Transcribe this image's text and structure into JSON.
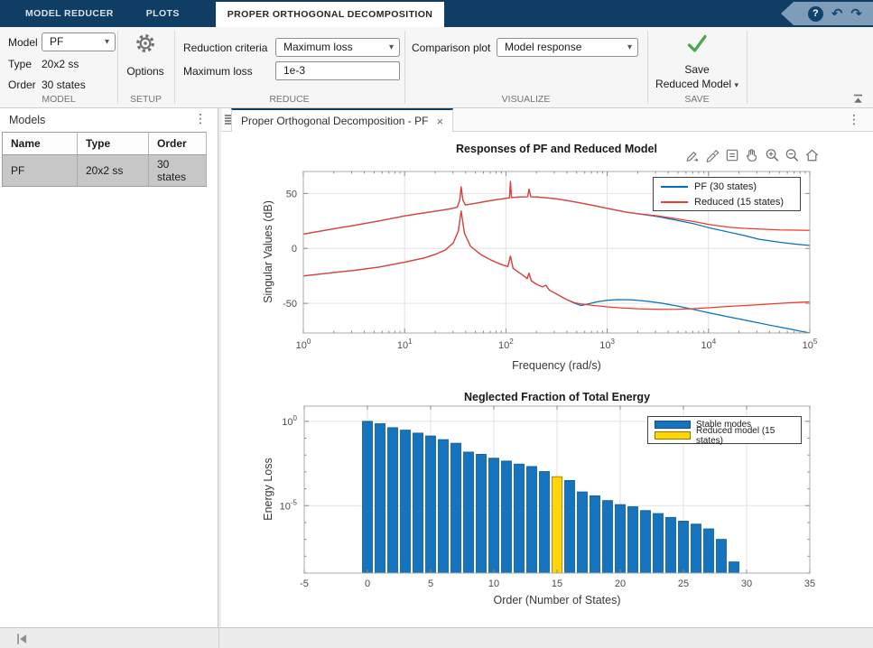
{
  "tabstrip": {
    "tabs": [
      {
        "label": "MODEL REDUCER"
      },
      {
        "label": "PLOTS"
      },
      {
        "label": "PROPER ORTHOGONAL DECOMPOSITION"
      }
    ],
    "help_glyph": "?",
    "undo_glyph": "↶",
    "redo_glyph": "↷"
  },
  "ribbon": {
    "model_section": {
      "label": "MODEL",
      "model_label": "Model",
      "model_value": "PF",
      "type_label": "Type",
      "type_value": "20x2 ss",
      "order_label": "Order",
      "order_value": "30 states"
    },
    "setup_section": {
      "label": "SETUP",
      "options_label": "Options"
    },
    "reduce_section": {
      "label": "REDUCE",
      "criteria_label": "Reduction criteria",
      "criteria_value": "Maximum loss",
      "maxloss_label": "Maximum loss",
      "maxloss_value": "1e-3"
    },
    "visualize_section": {
      "label": "VISUALIZE",
      "plot_label": "Comparison plot",
      "plot_value": "Model response"
    },
    "save_section": {
      "label": "SAVE",
      "save_line1": "Save",
      "save_line2": "Reduced Model"
    }
  },
  "models_panel": {
    "title": "Models",
    "menu_glyph": "⋮",
    "columns": [
      "Name",
      "Type",
      "Order"
    ],
    "rows": [
      {
        "name": "PF",
        "type": "20x2 ss",
        "order": "30 states"
      }
    ]
  },
  "document": {
    "tab_title": "Proper Orthogonal Decomposition - PF",
    "close_glyph": "×",
    "menu_glyph": "⋮",
    "axes_toolbar": [
      "edit-plot",
      "brush",
      "datatips",
      "pan",
      "zoom-in",
      "zoom-out",
      "restore-view"
    ]
  },
  "chart_data": [
    {
      "type": "line",
      "title": "Responses of PF and Reduced Model",
      "xlabel": "Frequency (rad/s)",
      "ylabel": "Singular Values (dB)",
      "x_scale": "log",
      "xlim_exp": [
        0,
        5
      ],
      "xtick_exponents": [
        0,
        1,
        2,
        3,
        4,
        5
      ],
      "ylim": [
        -77,
        70
      ],
      "yticks": [
        50,
        0,
        -50
      ],
      "grid": true,
      "legend_position": "northeast",
      "legend": [
        {
          "label": "PF (30 states)",
          "color": "#0072BD"
        },
        {
          "label": "Reduced (15 states)",
          "color": "#EE3B2F"
        }
      ],
      "curves": {
        "upper_common": [
          [
            0,
            13
          ],
          [
            0.25,
            17
          ],
          [
            0.5,
            21
          ],
          [
            0.75,
            25
          ],
          [
            1,
            29.5
          ],
          [
            1.2,
            32.5
          ],
          [
            1.35,
            34.5
          ],
          [
            1.45,
            36
          ],
          [
            1.52,
            37.5
          ],
          [
            1.545,
            44
          ],
          [
            1.558,
            56
          ],
          [
            1.575,
            44
          ],
          [
            1.6,
            39.5
          ],
          [
            1.7,
            41
          ],
          [
            1.8,
            42.7
          ],
          [
            1.9,
            44.2
          ],
          [
            2,
            45.5
          ],
          [
            2.035,
            46
          ],
          [
            2.045,
            61
          ],
          [
            2.055,
            46.3
          ],
          [
            2.1,
            46.6
          ],
          [
            2.15,
            46.8
          ],
          [
            2.215,
            47
          ],
          [
            2.228,
            54
          ],
          [
            2.245,
            47
          ],
          [
            2.3,
            46.8
          ],
          [
            2.4,
            46.1
          ],
          [
            2.5,
            45
          ],
          [
            2.6,
            43.6
          ],
          [
            2.7,
            42
          ],
          [
            2.8,
            40.3
          ],
          [
            2.9,
            38.4
          ],
          [
            3,
            36.4
          ],
          [
            3.1,
            34.6
          ],
          [
            3.2,
            32.9
          ]
        ],
        "pf_upper_tail": [
          [
            3.35,
            30.9
          ],
          [
            3.5,
            28.9
          ],
          [
            3.7,
            25.3
          ],
          [
            3.85,
            22.5
          ],
          [
            4,
            18.9
          ],
          [
            4.2,
            14.8
          ],
          [
            4.35,
            11.8
          ],
          [
            4.5,
            8.3
          ],
          [
            4.7,
            5.6
          ],
          [
            4.85,
            4
          ],
          [
            5,
            2.7
          ]
        ],
        "reduced_upper_tail": [
          [
            3.35,
            31.1
          ],
          [
            3.5,
            29.6
          ],
          [
            3.7,
            26.8
          ],
          [
            3.85,
            24.5
          ],
          [
            4,
            21.9
          ],
          [
            4.2,
            19.3
          ],
          [
            4.35,
            18.3
          ],
          [
            4.5,
            17.7
          ],
          [
            4.7,
            16.9
          ],
          [
            4.85,
            16.6
          ],
          [
            5,
            16.4
          ]
        ],
        "lower_common": [
          [
            0,
            -25
          ],
          [
            0.25,
            -22.5
          ],
          [
            0.5,
            -20
          ],
          [
            0.75,
            -17
          ],
          [
            1,
            -12.5
          ],
          [
            1.2,
            -8.5
          ],
          [
            1.3,
            -5.5
          ],
          [
            1.4,
            -1.5
          ],
          [
            1.48,
            5
          ],
          [
            1.53,
            16
          ],
          [
            1.558,
            34
          ],
          [
            1.59,
            14
          ],
          [
            1.65,
            2
          ],
          [
            1.75,
            -5.5
          ],
          [
            1.85,
            -10.5
          ],
          [
            1.95,
            -14.5
          ],
          [
            2.02,
            -16.5
          ],
          [
            2.045,
            -7
          ],
          [
            2.07,
            -18
          ],
          [
            2.12,
            -21.5
          ],
          [
            2.17,
            -24.5
          ],
          [
            2.21,
            -27.5
          ],
          [
            2.228,
            -22.5
          ],
          [
            2.25,
            -29.5
          ],
          [
            2.3,
            -32.5
          ],
          [
            2.36,
            -35
          ],
          [
            2.395,
            -33.5
          ],
          [
            2.43,
            -38
          ],
          [
            2.5,
            -41.5
          ],
          [
            2.6,
            -46.5
          ]
        ],
        "pf_lower_tail": [
          [
            2.68,
            -50
          ],
          [
            2.74,
            -52
          ],
          [
            2.8,
            -50.8
          ],
          [
            2.9,
            -48.6
          ],
          [
            3,
            -47.2
          ],
          [
            3.1,
            -46.6
          ],
          [
            3.25,
            -46.9
          ],
          [
            3.4,
            -48.2
          ],
          [
            3.55,
            -50
          ],
          [
            3.7,
            -52.6
          ],
          [
            3.85,
            -55.5
          ],
          [
            4,
            -58.5
          ],
          [
            4.2,
            -62.3
          ],
          [
            4.4,
            -66
          ],
          [
            4.6,
            -69.8
          ],
          [
            4.8,
            -73.3
          ],
          [
            5,
            -77
          ]
        ],
        "reduced_lower_tail": [
          [
            2.68,
            -49.5
          ],
          [
            2.74,
            -50.5
          ],
          [
            2.85,
            -51.8
          ],
          [
            3,
            -53.2
          ],
          [
            3.15,
            -54.2
          ],
          [
            3.3,
            -54.9
          ],
          [
            3.5,
            -55.4
          ],
          [
            3.7,
            -55.3
          ],
          [
            3.85,
            -54.8
          ],
          [
            4,
            -54
          ],
          [
            4.2,
            -52.8
          ],
          [
            4.4,
            -51.7
          ],
          [
            4.6,
            -50.6
          ],
          [
            4.8,
            -49.5
          ],
          [
            5,
            -48.7
          ]
        ]
      },
      "series": [
        {
          "name": "PF (30 states)",
          "color": "#0072BD",
          "paths": [
            [
              "upper_common",
              "pf_upper_tail"
            ],
            [
              "lower_common",
              "pf_lower_tail"
            ]
          ]
        },
        {
          "name": "Reduced (15 states)",
          "color": "#EE3B2F",
          "paths": [
            [
              "upper_common",
              "reduced_upper_tail"
            ],
            [
              "lower_common",
              "reduced_lower_tail"
            ]
          ]
        }
      ]
    },
    {
      "type": "bar",
      "title": "Neglected Fraction of Total Energy",
      "xlabel": "Order (Number of States)",
      "ylabel": "Energy Loss",
      "y_scale": "log",
      "xlim": [
        -5,
        35
      ],
      "xticks": [
        -5,
        0,
        5,
        10,
        15,
        20,
        25,
        30,
        35
      ],
      "ylim_exp": [
        -9,
        0.9
      ],
      "ytick_exponents": [
        0,
        -5
      ],
      "grid": true,
      "categories": [
        0,
        1,
        2,
        3,
        4,
        5,
        6,
        7,
        8,
        9,
        10,
        11,
        12,
        13,
        14,
        15,
        16,
        17,
        18,
        19,
        20,
        21,
        22,
        23,
        24,
        25,
        26,
        27,
        28,
        29
      ],
      "values": [
        1.0,
        0.72,
        0.42,
        0.3,
        0.2,
        0.135,
        0.082,
        0.05,
        0.015,
        0.011,
        0.0065,
        0.0044,
        0.0029,
        0.0021,
        0.00105,
        0.00052,
        0.00031,
        6.5e-05,
        3.8e-05,
        2e-05,
        1.15e-05,
        8.6e-06,
        5.1e-06,
        3.4e-06,
        2e-06,
        1.2e-06,
        8e-07,
        4.2e-07,
        1e-07,
        4.6e-09
      ],
      "highlight_index": 15,
      "bar_color": "#1574BD",
      "bar_edge": "#0d5a94",
      "highlight_color": "#FFD60A",
      "highlight_edge": "#8a7a00",
      "legend": [
        {
          "label": "Stable modes",
          "color": "#1574BD"
        },
        {
          "label": "Reduced model (15 states)",
          "color": "#FFD60A"
        }
      ]
    }
  ],
  "colors": {
    "toolstrip_navy": "#0f3d63",
    "banner_blue": "#7e9db9",
    "line_blue": "#0072BD",
    "line_red": "#EE3B2F",
    "bar_blue": "#1574BD",
    "bar_yellow": "#FFD60A",
    "selected_row": "#c7c7c7",
    "check_green": "#4aa64a"
  }
}
